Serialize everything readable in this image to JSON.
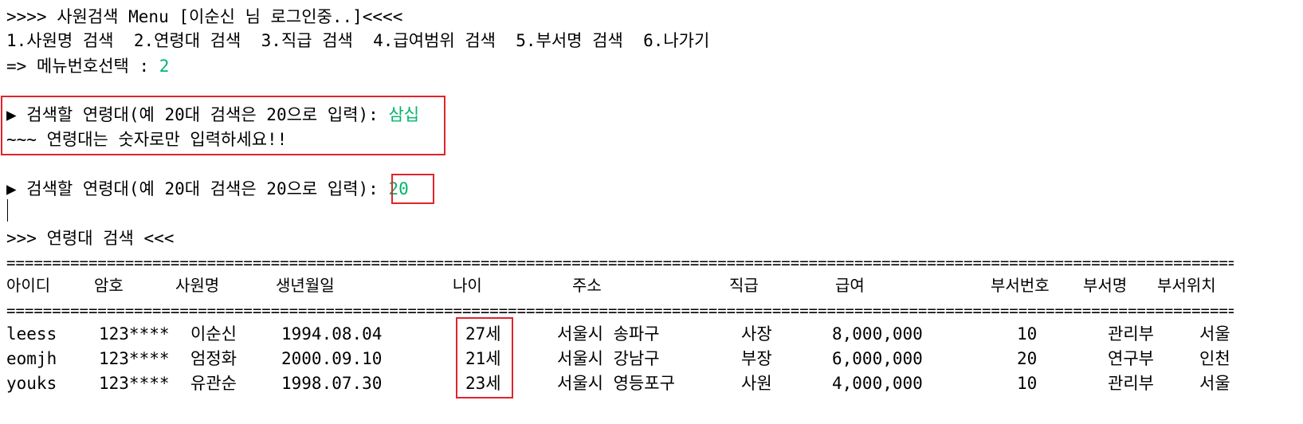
{
  "menu": {
    "title_line": ">>>> 사원검색 Menu [이순신 님 로그인중..]<<<<",
    "options_line": "1.사원명 검색  2.연령대 검색  3.직급 검색  4.급여범위 검색  5.부서명 검색  6.나가기",
    "select_prompt": "=> 메뉴번호선택 : ",
    "select_value": "2"
  },
  "first_attempt": {
    "prompt": "▶ 검색할 연령대(예 20대 검색은 20으로 입력): ",
    "input": "삼십",
    "error": "~~~ 연령대는 숫자로만 입력하세요!!"
  },
  "second_attempt": {
    "prompt": "▶ 검색할 연령대(예 20대 검색은 20으로 입력): ",
    "input": "20"
  },
  "result": {
    "heading": ">>> 연령대 검색 <<<",
    "separator": "========================================================================================================================================================",
    "columns": [
      "아이디",
      "암호",
      "사원명",
      "생년월일",
      "나이",
      "주소",
      "직급",
      "급여",
      "부서번호",
      "부서명",
      "부서위치"
    ],
    "rows": [
      {
        "id": "leess",
        "pw": "123****",
        "name": "이순신",
        "birth": "1994.08.04",
        "age": "27세",
        "addr": "서울시 송파구",
        "rank": "사장",
        "salary": "8,000,000",
        "dept_no": "10",
        "dept_name": "관리부",
        "dept_loc": "서울"
      },
      {
        "id": "eomjh",
        "pw": "123****",
        "name": "엄정화",
        "birth": "2000.09.10",
        "age": "21세",
        "addr": "서울시 강남구",
        "rank": "부장",
        "salary": "6,000,000",
        "dept_no": "20",
        "dept_name": "연구부",
        "dept_loc": "인천"
      },
      {
        "id": "youks",
        "pw": "123****",
        "name": "유관순",
        "birth": "1998.07.30",
        "age": "23세",
        "addr": "서울시 영등포구",
        "rank": "사원",
        "salary": "4,000,000",
        "dept_no": "10",
        "dept_name": "관리부",
        "dept_loc": "서울"
      }
    ]
  },
  "colors": {
    "input_text": "#00b46e",
    "highlight_box": "#e0242c"
  }
}
